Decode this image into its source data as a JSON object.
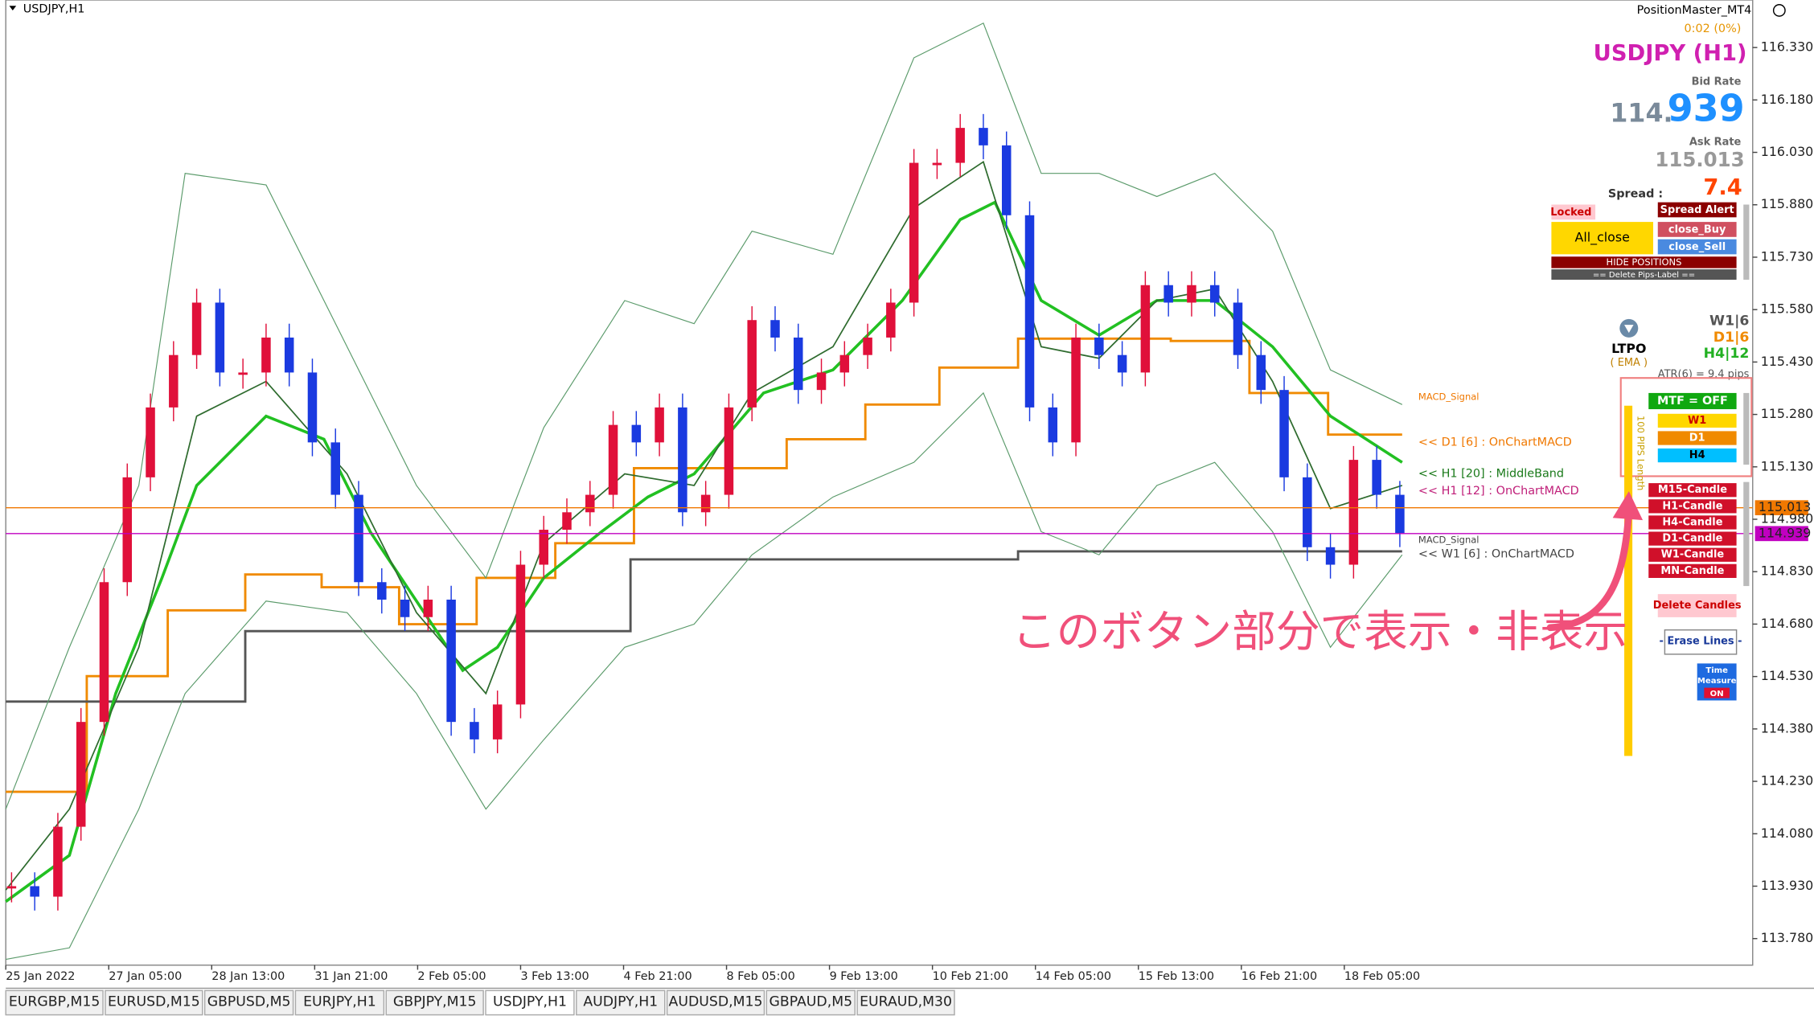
{
  "window": {
    "symbol_title": "USDJPY,H1"
  },
  "price_axis": {
    "ylim": [
      113.704,
      116.466
    ],
    "ticks": [
      {
        "value": 116.33,
        "label": "116.330"
      },
      {
        "value": 116.18,
        "label": "116.180"
      },
      {
        "value": 116.03,
        "label": "116.030"
      },
      {
        "value": 115.88,
        "label": "115.880"
      },
      {
        "value": 115.73,
        "label": "115.730"
      },
      {
        "value": 115.58,
        "label": "115.580"
      },
      {
        "value": 115.43,
        "label": "115.430"
      },
      {
        "value": 115.28,
        "label": "115.280"
      },
      {
        "value": 115.13,
        "label": "115.130"
      },
      {
        "value": 114.98,
        "label": "114.980"
      },
      {
        "value": 114.83,
        "label": "114.830"
      },
      {
        "value": 114.68,
        "label": "114.680"
      },
      {
        "value": 114.53,
        "label": "114.530"
      },
      {
        "value": 114.38,
        "label": "114.380"
      },
      {
        "value": 114.23,
        "label": "114.230"
      },
      {
        "value": 114.08,
        "label": "114.080"
      },
      {
        "value": 113.93,
        "label": "113.930"
      },
      {
        "value": 113.78,
        "label": "113.780"
      }
    ]
  },
  "time_axis": {
    "labels": [
      "25 Jan 2022",
      "27 Jan 05:00",
      "28 Jan 13:00",
      "31 Jan 21:00",
      "2 Feb 05:00",
      "3 Feb 13:00",
      "4 Feb 21:00",
      "8 Feb 05:00",
      "9 Feb 13:00",
      "10 Feb 21:00",
      "14 Feb 05:00",
      "15 Feb 13:00",
      "16 Feb 21:00",
      "18 Feb 05:00"
    ]
  },
  "price_series": {
    "values": [
      113.93,
      113.9,
      114.1,
      114.4,
      114.8,
      115.1,
      115.3,
      115.45,
      115.6,
      115.4,
      115.4,
      115.5,
      115.4,
      115.2,
      115.05,
      114.8,
      114.75,
      114.7,
      114.75,
      114.4,
      114.35,
      114.45,
      114.85,
      114.95,
      115.0,
      115.05,
      115.25,
      115.2,
      115.3,
      115.0,
      115.05,
      115.3,
      115.55,
      115.5,
      115.35,
      115.4,
      115.45,
      115.5,
      115.6,
      116.0,
      116.0,
      116.1,
      116.05,
      115.85,
      115.3,
      115.2,
      115.5,
      115.45,
      115.4,
      115.65,
      115.6,
      115.65,
      115.6,
      115.45,
      115.35,
      115.1,
      114.9,
      114.85,
      115.15,
      115.05,
      114.94
    ]
  },
  "price_tags": [
    {
      "value": 115.013,
      "label": "115.013",
      "color": "#f07800"
    },
    {
      "value": 114.939,
      "label": "114.939",
      "color": "#c000c0"
    }
  ],
  "line_labels": [
    {
      "text": "<< D1 [6] : OnChartMACD",
      "value": 115.2,
      "color": "#f07800"
    },
    {
      "text": "<< H1 [20] : MiddleBand",
      "value": 115.11,
      "color": "#1a7a1a"
    },
    {
      "text": "<< H1 [12] : OnChartMACD",
      "value": 115.06,
      "color": "#c0207a"
    },
    {
      "text": "<< W1 [6] : OnChartMACD",
      "value": 114.88,
      "color": "#444444"
    },
    {
      "text": "MACD_Signal",
      "value": 115.33,
      "color": "#f07800"
    },
    {
      "text": "MACD_Signal",
      "value": 114.92,
      "color": "#444444"
    }
  ],
  "panel": {
    "app": "PositionMaster_MT4",
    "timer": "0:02 (0%)",
    "symbol": "USDJPY (H1)",
    "bid_title": "Bid Rate",
    "bid_int": "114.",
    "bid_frac": "939",
    "ask_title": "Ask Rate",
    "ask": "115.013",
    "spread_title": "Spread :",
    "spread": "7.4",
    "locked": "Locked",
    "spread_alert": "Spread Alert",
    "all_close": "All_close",
    "close_buy": "close_Buy",
    "close_sell": "close_Sell",
    "hide_positions": "HIDE POSITIONS",
    "delete_pips": "== Delete Pips-Label ==",
    "w1": "W1|6",
    "d1": "D1|6",
    "h4": "H4|12",
    "ltpo": "LTPO",
    "ema": "( EMA )",
    "atr": "ATR(6) = 9.4 pips",
    "mtf": "MTF = OFF",
    "mtf_w1": "W1",
    "mtf_d1": "D1",
    "mtf_h4": "H4",
    "candles": [
      "M15-Candle",
      "H1-Candle",
      "H4-Candle",
      "D1-Candle",
      "W1-Candle",
      "MN-Candle"
    ],
    "delete_candles": "Delete Candles",
    "erase_lines": "- Erase Lines -",
    "time1": "Time",
    "time2": "Measure",
    "time3": "ON",
    "pips_length": "100 PIPS Length"
  },
  "annotation": "このボタン部分で表示・非表示",
  "tabs": [
    {
      "label": "EURGBP,M15"
    },
    {
      "label": "EURUSD,M15"
    },
    {
      "label": "GBPUSD,M5"
    },
    {
      "label": "EURJPY,H1"
    },
    {
      "label": "GBPJPY,M15"
    },
    {
      "label": "USDJPY,H1",
      "active": true
    },
    {
      "label": "AUDJPY,H1"
    },
    {
      "label": "AUDUSD,M15"
    },
    {
      "label": "GBPAUD,M5"
    },
    {
      "label": "EURAUD,M30"
    }
  ]
}
